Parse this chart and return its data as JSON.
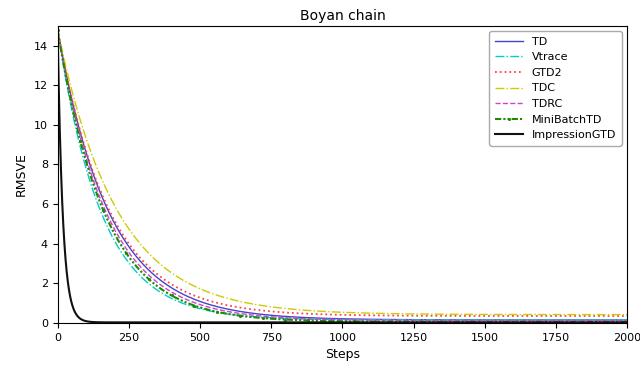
{
  "title": "Boyan chain",
  "xlabel": "Steps",
  "ylabel": "RMSVE",
  "xlim": [
    0,
    2000
  ],
  "ylim": [
    0,
    15.0
  ],
  "yticks": [
    0,
    2,
    4,
    6,
    8,
    10,
    12,
    14
  ],
  "xticks": [
    0,
    250,
    500,
    750,
    1000,
    1250,
    1500,
    1750,
    2000
  ],
  "n_points": 2001,
  "curves": [
    {
      "label": "TD",
      "color": "#4444cc",
      "linestyle": "solid",
      "linewidth": 1.0,
      "start": 14.8,
      "decay": 0.0055,
      "asym": 0.15
    },
    {
      "label": "Vtrace",
      "color": "#00cccc",
      "linestyle": "dashdot",
      "linewidth": 1.0,
      "start": 14.8,
      "decay": 0.0065,
      "asym": 0.15
    },
    {
      "label": "GTD2",
      "color": "#ff4444",
      "linestyle": "dotted",
      "linewidth": 1.3,
      "start": 14.8,
      "decay": 0.0055,
      "asym": 0.35
    },
    {
      "label": "TDC",
      "color": "#cccc00",
      "linestyle": "dashdot",
      "linewidth": 1.0,
      "start": 14.8,
      "decay": 0.0048,
      "asym": 0.42
    },
    {
      "label": "TDRC",
      "color": "#cc44cc",
      "linestyle": "dashed",
      "linewidth": 1.0,
      "start": 14.8,
      "decay": 0.0058,
      "asym": 0.12
    },
    {
      "label": "MiniBatchTD",
      "color": "#228800",
      "linestyle": "dashdotdot",
      "linewidth": 1.5,
      "start": 14.8,
      "decay": 0.006,
      "asym": 0.05
    },
    {
      "label": "ImpressionGTD",
      "color": "#111111",
      "linestyle": "solid",
      "linewidth": 1.5,
      "start": 14.8,
      "decay": 0.055,
      "asym": 0.03
    }
  ],
  "background_color": "#ffffff",
  "legend_loc": "upper right",
  "legend_fontsize": 8,
  "title_fontsize": 10
}
